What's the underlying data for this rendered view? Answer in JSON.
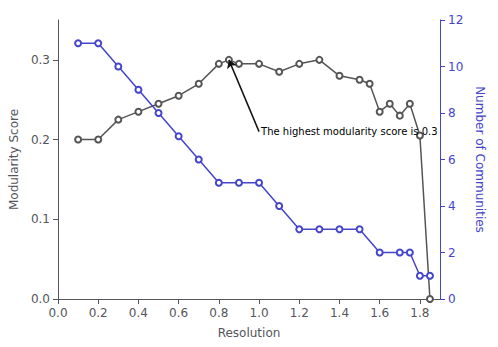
{
  "chart_data": {
    "type": "line",
    "xlabel": "Resolution",
    "ylabel": "Modularity Score",
    "y2label": "Number of Communities",
    "xlim": [
      0.0,
      1.9
    ],
    "xticks": [
      {
        "value": 0.0,
        "label": "0.0"
      },
      0.2,
      0.4,
      0.6,
      0.8,
      {
        "value": 1.0,
        "label": "1.0"
      },
      1.2,
      1.4,
      1.6,
      1.8
    ],
    "ylim": [
      0.0,
      0.35
    ],
    "yticks": [
      {
        "value": 0.0,
        "label": "0.0"
      },
      0.1,
      0.2,
      0.3
    ],
    "y2lim": [
      0,
      12
    ],
    "y2ticks": [
      0,
      2,
      4,
      6,
      8,
      10,
      12
    ],
    "grid": false,
    "marker": "circle",
    "series": [
      {
        "color": "#555555",
        "x": [
          0.1,
          0.2,
          0.3,
          0.4,
          0.5,
          0.6,
          0.7,
          0.8,
          0.85,
          0.9,
          1.0,
          1.1,
          1.2,
          1.3,
          1.4,
          1.5,
          1.55,
          1.6,
          1.65,
          1.7,
          1.75,
          1.8,
          1.85
        ],
        "values": [
          0.2,
          0.2,
          0.225,
          0.235,
          0.245,
          0.255,
          0.27,
          0.295,
          0.3,
          0.295,
          0.295,
          0.285,
          0.295,
          0.3,
          0.28,
          0.275,
          0.27,
          0.235,
          0.245,
          0.23,
          0.245,
          0.205,
          0.0
        ]
      },
      {
        "color": "#4444cc",
        "axis": "y2",
        "x": [
          0.1,
          0.2,
          0.3,
          0.4,
          0.5,
          0.6,
          0.7,
          0.8,
          0.9,
          1.0,
          1.1,
          1.2,
          1.3,
          1.4,
          1.5,
          1.6,
          1.7,
          1.75,
          1.8,
          1.85
        ],
        "values": [
          11,
          11,
          10,
          9,
          8,
          7,
          6,
          5,
          5,
          5,
          4,
          3,
          3,
          3,
          3,
          2,
          2,
          2,
          1,
          1
        ]
      }
    ],
    "annotations": [
      {
        "text": "The highest modularity score is 0.3",
        "x": 0.85,
        "y": 0.3,
        "text_x": 1.0,
        "text_y": 0.21
      }
    ]
  }
}
